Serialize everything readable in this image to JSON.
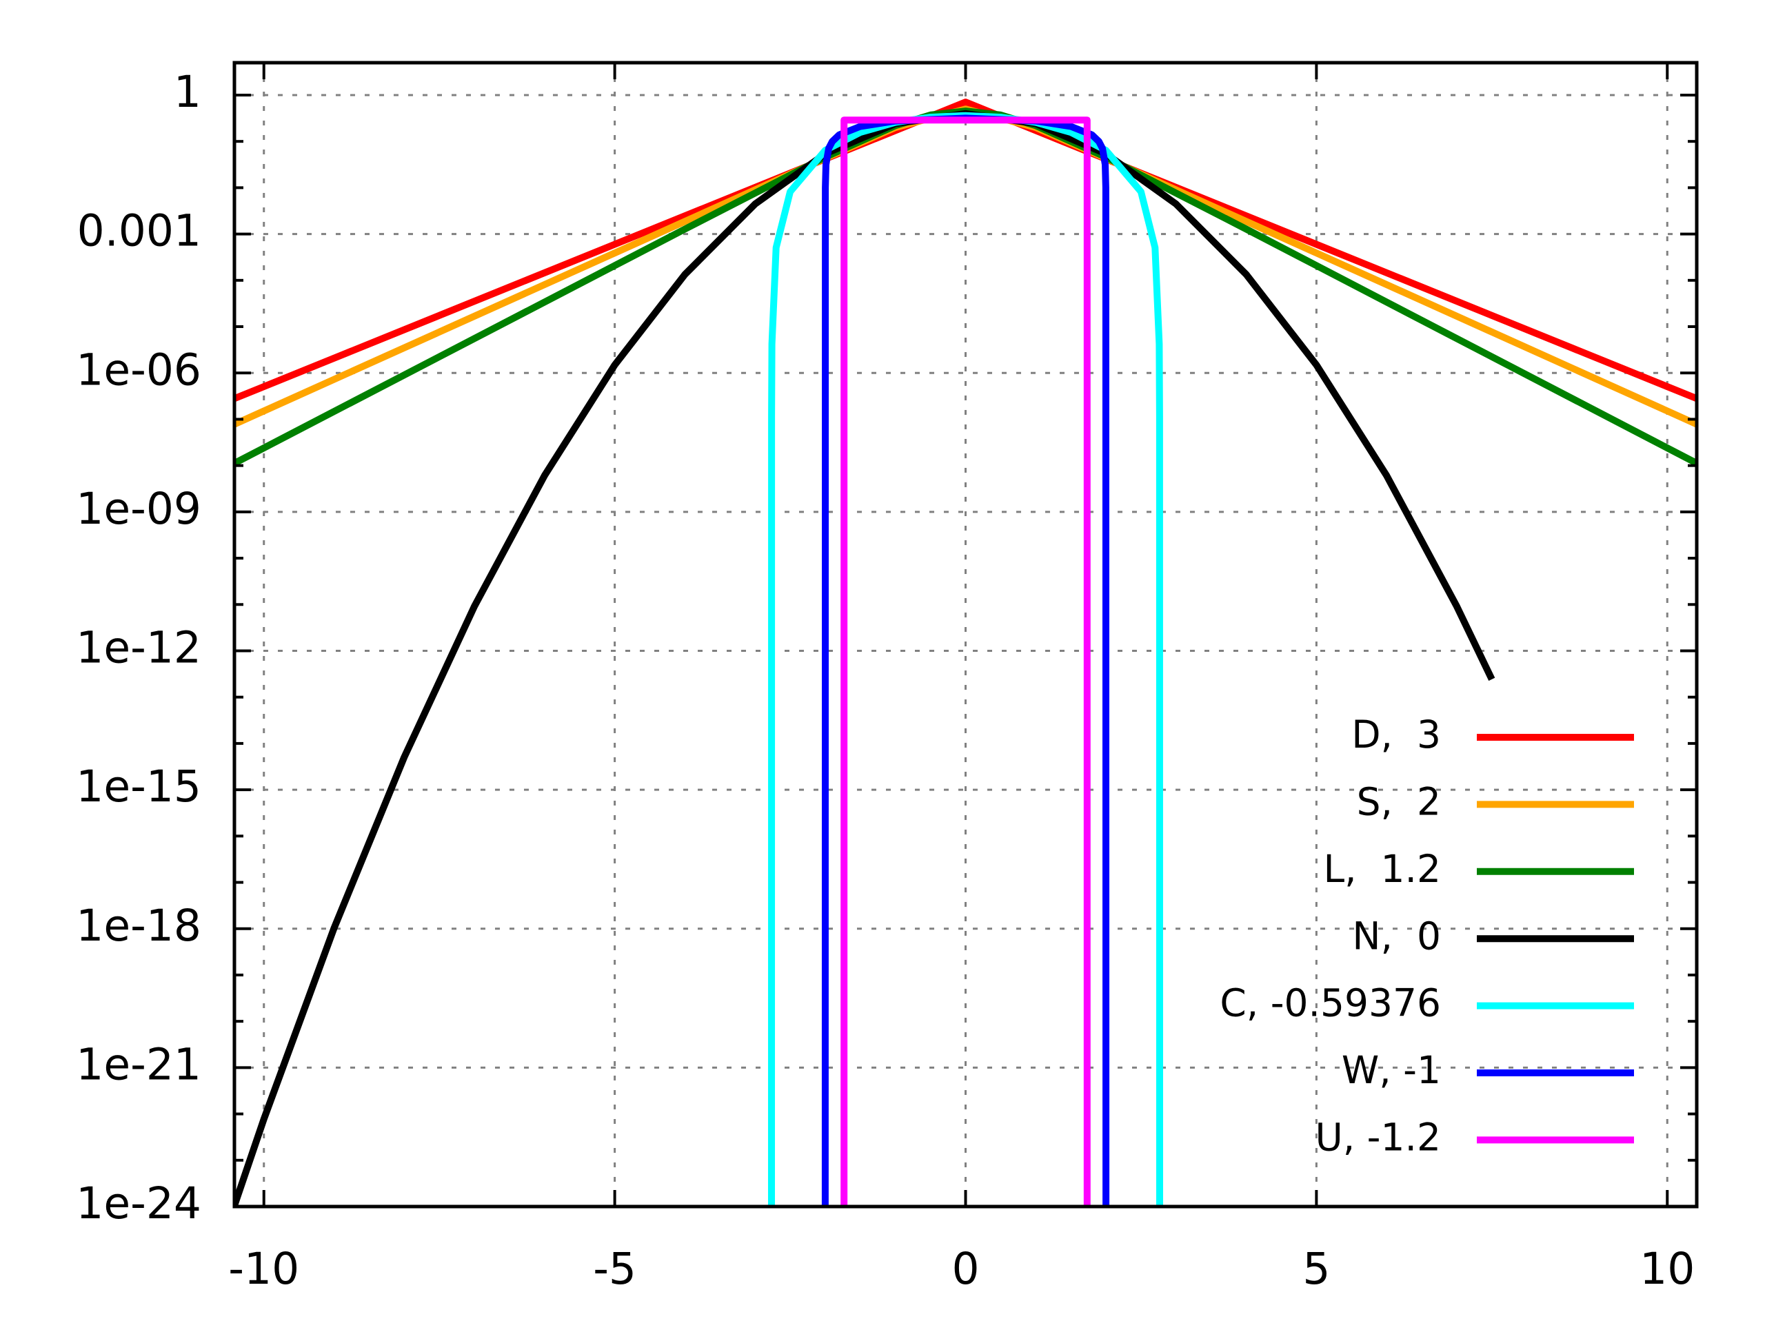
{
  "chart_data": {
    "type": "line",
    "log_y": true,
    "grid": true,
    "legend": "lower right",
    "xlim": [
      -10.42,
      10.42
    ],
    "xticks": [
      -10,
      -5,
      0,
      5,
      10
    ],
    "ylim": [
      1e-24,
      5
    ],
    "yticks": [
      1,
      0.001,
      {
        "value": 1e-06,
        "label": "1e-06"
      },
      {
        "value": 1e-09,
        "label": "1e-09"
      },
      {
        "value": 1e-12,
        "label": "1e-12"
      },
      {
        "value": 1e-15,
        "label": "1e-15"
      },
      {
        "value": 1e-18,
        "label": "1e-18"
      },
      {
        "value": 1e-21,
        "label": "1e-21"
      },
      {
        "value": 1e-24,
        "label": "1e-24"
      }
    ],
    "yminor_ticks": [
      0.1,
      0.01,
      0.0001,
      1e-05,
      1e-07,
      1e-08,
      1e-10,
      1e-11,
      1e-13,
      1e-14,
      1e-16,
      1e-17,
      1e-19,
      1e-20,
      1e-22,
      1e-23
    ],
    "series": [
      {
        "name": "D,  3",
        "color": "#ff0000",
        "x": [
          -10.42,
          0,
          10.42
        ],
        "values": [
          2.8e-07,
          0.7071,
          2.8e-07
        ]
      },
      {
        "name": "S,  2",
        "color": "#ffa500",
        "x": [
          -10.42,
          -4,
          -2,
          -1,
          0,
          1,
          2,
          4,
          10.42
        ],
        "values": [
          7.8e-08,
          0.00187,
          0.0431,
          0.1993,
          0.5,
          0.1993,
          0.0431,
          0.00187,
          7.8e-08
        ]
      },
      {
        "name": "L,  1.2",
        "color": "#008000",
        "x": [
          -10.42,
          -4,
          -2,
          -1,
          -0.5,
          0,
          0.5,
          1,
          2,
          4,
          10.42
        ],
        "values": [
          1.12e-08,
          0.001277,
          0.0457,
          0.2186,
          0.3717,
          0.4535,
          0.3717,
          0.2186,
          0.0457,
          0.001277,
          1.12e-08
        ]
      },
      {
        "name": "N,  0",
        "color": "#000000",
        "x": [
          -10.42,
          -10,
          -9,
          -8,
          -7,
          -6,
          -5,
          -4,
          -3,
          -2,
          -1,
          0,
          1,
          2,
          3,
          4,
          5,
          6,
          7,
          7.5
        ],
        "values": [
          1.05e-24,
          7.695e-23,
          1.027e-18,
          5.052e-15,
          9.135e-12,
          6.076e-09,
          1.487e-06,
          0.0001338,
          0.004432,
          0.05399,
          0.242,
          0.3989,
          0.242,
          0.05399,
          0.004432,
          0.0001338,
          1.487e-06,
          6.076e-09,
          9.135e-12,
          2.43e-13
        ]
      },
      {
        "name": "C, -0.59376",
        "color": "#00ffff",
        "x": [
          -2.766,
          -2.765,
          -2.76,
          -2.7,
          -2.5,
          -2,
          -1.5,
          -1,
          -0.5,
          0,
          0.5,
          1,
          1.5,
          2,
          2.5,
          2.7,
          2.76,
          2.765,
          2.766
        ],
        "values": [
          0,
          1.17e-07,
          4.2e-06,
          0.00051,
          0.00819,
          0.0641,
          0.1568,
          0.257,
          0.3332,
          0.3616,
          0.3332,
          0.257,
          0.1568,
          0.0641,
          0.00819,
          0.00051,
          4.2e-06,
          1.17e-07,
          0
        ]
      },
      {
        "name": "W, -1",
        "color": "#0000ff",
        "x": [
          -2,
          -1.999,
          -1.99,
          -1.95,
          -1.9,
          -1.8,
          -1.5,
          -1,
          0,
          1,
          1.5,
          1.8,
          1.9,
          1.95,
          1.99,
          1.999,
          2
        ],
        "values": [
          0,
          0.01006,
          0.0318,
          0.0707,
          0.0994,
          0.1387,
          0.2105,
          0.2757,
          0.3183,
          0.2757,
          0.2105,
          0.1387,
          0.0994,
          0.0707,
          0.0318,
          0.01006,
          0
        ]
      },
      {
        "name": "U, -1.2",
        "color": "#ff00ff",
        "x": [
          -1.732,
          -1.732,
          1.732,
          1.732
        ],
        "values": [
          0,
          0.2887,
          0.2887,
          0
        ]
      }
    ]
  }
}
